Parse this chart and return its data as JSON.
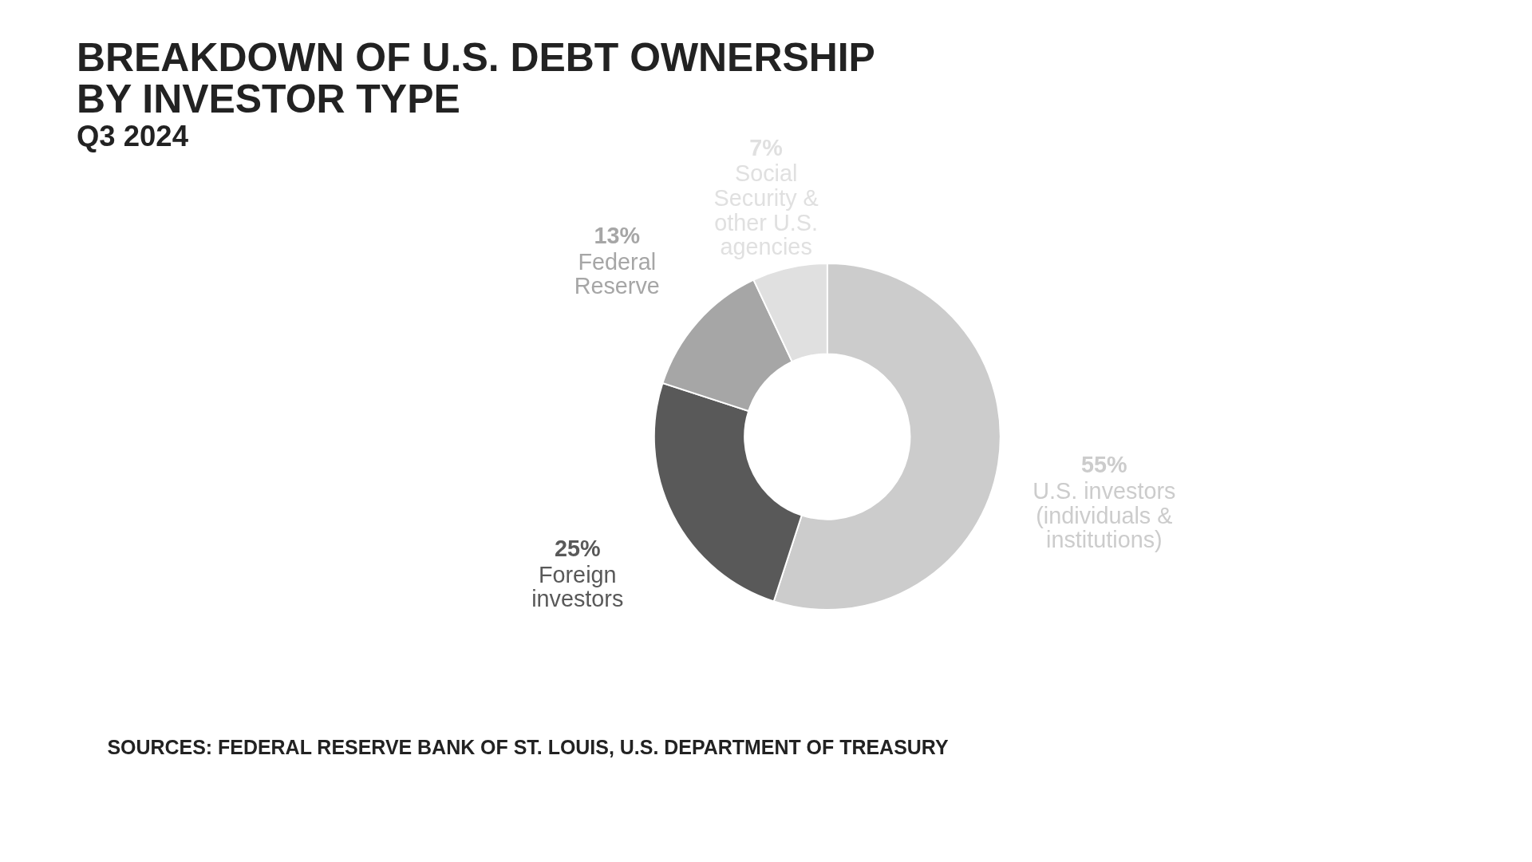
{
  "chart_data": {
    "type": "donut",
    "title": "BREAKDOWN OF U.S. DEBT OWNERSHIP BY INVESTOR TYPE",
    "subtitle": "Q3 2024",
    "categories": [
      "U.S. investors (individuals & institutions)",
      "Foreign investors",
      "Federal Reserve",
      "Social Security & other U.S. agencies"
    ],
    "values": [
      55,
      25,
      13,
      7
    ],
    "colors": [
      "#cccccc",
      "#595959",
      "#a6a6a6",
      "#e0e0e0"
    ],
    "value_labels": [
      "55%",
      "25%",
      "13%",
      "7%"
    ],
    "annotations": [
      "SOURCES: FEDERAL RESERVE BANK OF ST. LOUIS, U.S. DEPARTMENT OF TREASURY"
    ],
    "legend": false
  }
}
